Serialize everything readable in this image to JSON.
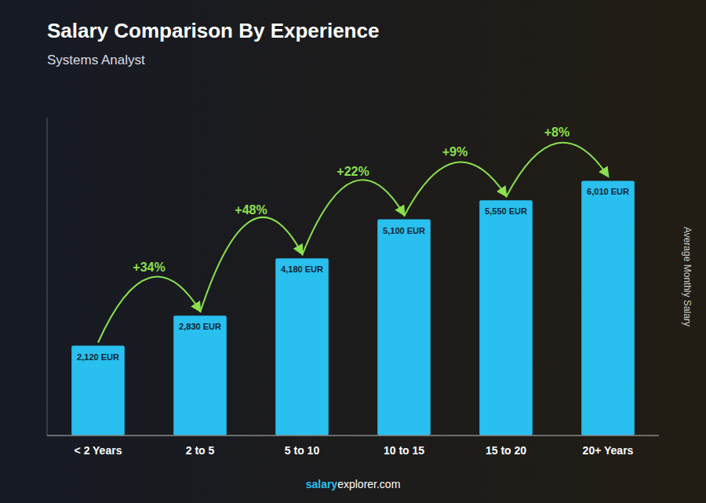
{
  "chart_data": {
    "type": "bar",
    "title": "Salary Comparison By Experience",
    "subtitle": "Systems Analyst",
    "categories": [
      "< 2 Years",
      "2 to 5",
      "5 to 10",
      "10 to 15",
      "15 to 20",
      "20+ Years"
    ],
    "values": [
      2120,
      2830,
      4180,
      5100,
      5550,
      6010
    ],
    "value_labels": [
      "2,120 EUR",
      "2,830 EUR",
      "4,180 EUR",
      "5,100 EUR",
      "5,550 EUR",
      "6,010 EUR"
    ],
    "data_labels": true,
    "annotations": [
      "+34%",
      "+48%",
      "+22%",
      "+9%",
      "+8%"
    ],
    "ylabel": "Average Monthly Salary",
    "footer_bold": "salary",
    "footer_normal": "explorer.com",
    "color": "#29bfef",
    "ylim": [
      0,
      7500
    ],
    "tick_labels": "x"
  }
}
